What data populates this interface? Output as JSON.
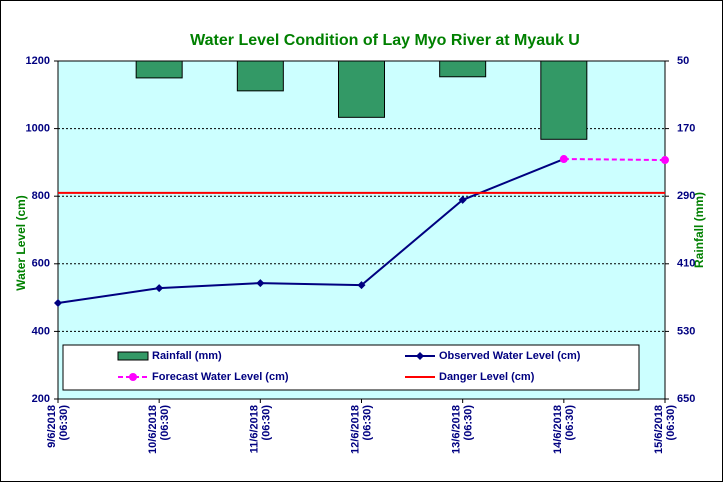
{
  "chart_data": {
    "type": "combo",
    "title": "Water Level Condition of Lay Myo  River at  Myauk U",
    "y_label": "Water Level (cm)",
    "y2_label": "Rainfall (mm)",
    "categories": [
      "9/6/2018 (06:30)",
      "10/6/2018 (06:30)",
      "11/6/2018 (06:30)",
      "12/6/2018 (06:30)",
      "13/6/2018 (06:30)",
      "14/6/2018 (06:30)",
      "15/6/2018 (06:30)"
    ],
    "ylim": [
      200,
      1200
    ],
    "yticks": [
      200,
      400,
      600,
      800,
      1000,
      1200
    ],
    "y2lim": [
      50,
      650
    ],
    "y2ticks": [
      50,
      170,
      290,
      410,
      530,
      650
    ],
    "y2_reversed": true,
    "grid": true,
    "series": [
      {
        "name": "Rainfall (mm)",
        "type": "bar",
        "axis": "y2",
        "color": "#339966",
        "values": [
          50,
          80,
          103,
          150,
          78,
          189,
          null
        ]
      },
      {
        "name": "Observed Water Level (cm)",
        "type": "line",
        "color": "#000080",
        "marker": "diamond",
        "values": [
          484,
          528,
          543,
          537,
          789,
          910,
          null
        ]
      },
      {
        "name": "Forecast Water Level (cm)",
        "type": "line",
        "color": "#ff00ff",
        "dashed": true,
        "marker": "circle",
        "values": [
          null,
          null,
          null,
          null,
          null,
          910,
          907
        ]
      },
      {
        "name": "Danger Level (cm)",
        "type": "line",
        "color": "#ff0000",
        "values": [
          810,
          810,
          810,
          810,
          810,
          810,
          810
        ]
      }
    ]
  }
}
